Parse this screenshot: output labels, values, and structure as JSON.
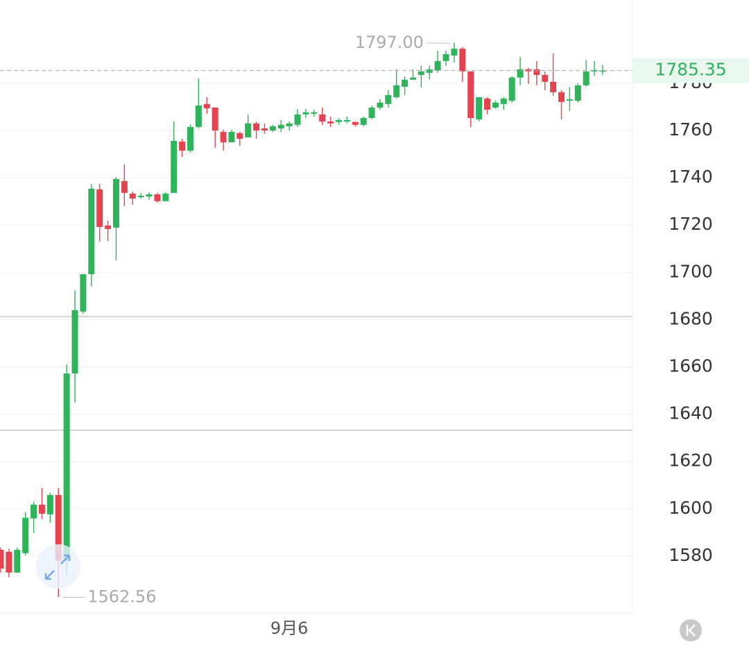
{
  "chart_data": {
    "type": "candlestick",
    "categories": [
      null,
      null,
      null,
      null,
      null,
      null,
      null,
      null,
      null,
      null,
      null,
      null,
      null,
      null,
      null,
      null,
      null,
      null,
      null,
      null,
      null,
      null,
      null,
      null,
      null,
      null,
      null,
      null,
      null,
      null,
      null,
      null,
      null,
      null,
      null,
      "9月6",
      null,
      null,
      null,
      null,
      null,
      null,
      null,
      null,
      null,
      null,
      null,
      null,
      null,
      null,
      null,
      null,
      null,
      null,
      null,
      null,
      null,
      null,
      null,
      null,
      null,
      null,
      null,
      null,
      null,
      null,
      null,
      null,
      null,
      null,
      null,
      null,
      null,
      null
    ],
    "open": [
      1582.6,
      1581.8,
      1573,
      1581.2,
      1595.9,
      1601.7,
      1597.6,
      1605.8,
      1578,
      1657.2,
      1683.4,
      1699.2,
      1735.1,
      1719.8,
      1718.9,
      1738.6,
      1733.3,
      1731.8,
      1732.1,
      1733,
      1730.1,
      1733.6,
      1755.3,
      1751.5,
      1761.5,
      1771.2,
      1769.7,
      1759.4,
      1755,
      1758.9,
      1757.1,
      1763,
      1760.9,
      1760,
      1760.9,
      1761.8,
      1762.4,
      1766.8,
      1767.1,
      1766.8,
      1763.8,
      1763.6,
      1763.8,
      1763.6,
      1762.4,
      1765.3,
      1769.7,
      1771.2,
      1774.1,
      1778.5,
      1781.5,
      1783.5,
      1784.4,
      1785.3,
      1789.4,
      1791.7,
      1794.6,
      1785,
      1764.7,
      1773.5,
      1769.7,
      1771.2,
      1772.6,
      1782.4,
      1785.9,
      1785.9,
      1783.5,
      1780.6,
      1776.2,
      1772.6,
      1772.6,
      1779.1,
      1785,
      1785.3
    ],
    "high": [
      1583.5,
      1583,
      1583.5,
      1598.5,
      1603,
      1608.8,
      1606.7,
      1608.8,
      1661,
      1692.5,
      1699.2,
      1737.4,
      1737.4,
      1721.9,
      1740.3,
      1745.6,
      1734.2,
      1733.6,
      1733.9,
      1733.6,
      1733.9,
      1763.8,
      1756.5,
      1762.4,
      1782,
      1774.1,
      1769.7,
      1760.3,
      1760.3,
      1759.4,
      1766.8,
      1763.8,
      1763,
      1762.4,
      1764.4,
      1763.8,
      1769.1,
      1769.1,
      1768.8,
      1769.7,
      1765.9,
      1765.3,
      1765.9,
      1763.8,
      1765.9,
      1770.6,
      1773.2,
      1777.1,
      1785.9,
      1782.9,
      1785.9,
      1787.4,
      1787.4,
      1793.8,
      1793.8,
      1797,
      1795.3,
      1785,
      1774.1,
      1774.1,
      1772.6,
      1774.1,
      1782.9,
      1791.1,
      1786.5,
      1789.4,
      1785,
      1792.6,
      1777.1,
      1778.5,
      1780,
      1789.7,
      1789.4,
      1787.7
    ],
    "low": [
      1573,
      1571,
      1573,
      1580.3,
      1589.7,
      1595.6,
      1594,
      1562.56,
      1571.5,
      1645,
      1682.5,
      1694,
      1713,
      1713.3,
      1705,
      1728,
      1728.6,
      1731.2,
      1730.7,
      1729.5,
      1730.1,
      1733.6,
      1748.9,
      1750.6,
      1760.9,
      1767.1,
      1752.7,
      1751.5,
      1755,
      1753.6,
      1757.1,
      1756.5,
      1758.6,
      1759.4,
      1759.4,
      1760,
      1761.5,
      1765.3,
      1765.9,
      1762.4,
      1761.5,
      1762.4,
      1763,
      1761.8,
      1761.8,
      1764.7,
      1768.8,
      1769.7,
      1773.5,
      1775,
      1781.5,
      1778.2,
      1781.5,
      1784.4,
      1787.4,
      1788.8,
      1780.6,
      1761.5,
      1763.8,
      1766.8,
      1769.1,
      1768.8,
      1771.8,
      1779.1,
      1779.7,
      1779.1,
      1777.1,
      1774.7,
      1764.7,
      1768.3,
      1771.8,
      1778.5,
      1783.2,
      1783.5
    ],
    "close": [
      1574.7,
      1573,
      1582.6,
      1596.2,
      1601.7,
      1597.9,
      1605.8,
      1578,
      1657.2,
      1684,
      1699.2,
      1735.4,
      1719.2,
      1718.3,
      1739.5,
      1733.6,
      1731.2,
      1732.4,
      1733,
      1730.1,
      1733.3,
      1755.6,
      1751.5,
      1761.5,
      1770.6,
      1769.4,
      1760,
      1755,
      1759.4,
      1756.5,
      1763,
      1760,
      1760,
      1761.8,
      1762.4,
      1763,
      1766.8,
      1767.7,
      1767.7,
      1763.8,
      1763,
      1764.4,
      1764.4,
      1762.4,
      1765.3,
      1769.7,
      1771.8,
      1775,
      1779.1,
      1781.5,
      1782.4,
      1785,
      1785.9,
      1789.4,
      1792.3,
      1794.6,
      1785,
      1765.3,
      1774.1,
      1768.8,
      1771.8,
      1773.5,
      1782.4,
      1785.9,
      1785,
      1783.5,
      1780.6,
      1776.2,
      1772.1,
      1773.2,
      1779.1,
      1785,
      1785.6,
      1785.35
    ],
    "up_color": "#2fb45c",
    "down_color": "#e5434f",
    "ylim": [
      1555.9,
      1815.2
    ],
    "yticks": [
      1580,
      1600,
      1620,
      1640,
      1660,
      1680,
      1700,
      1720,
      1740,
      1760,
      1780
    ],
    "grid": true,
    "hlines": [
      1681.3,
      1633.2
    ],
    "last_price": 1785.35,
    "high_label": {
      "value": 1797.0,
      "label": "1797.00"
    },
    "low_label": 1562.56
  }
}
